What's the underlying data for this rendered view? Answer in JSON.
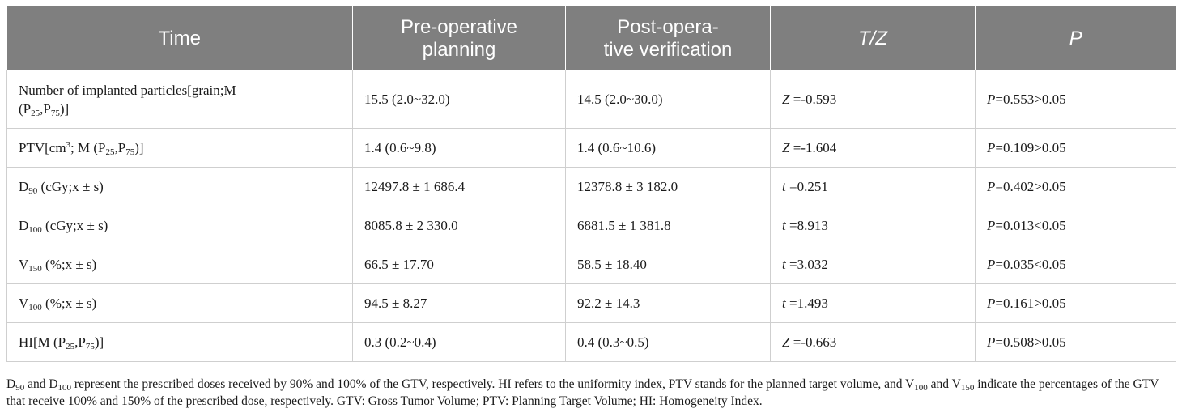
{
  "table": {
    "headers": {
      "time": "Time",
      "pre_line1": "Pre-operative",
      "pre_line2": "planning",
      "post_line1": "Post-opera-",
      "post_line2": "tive verification",
      "tz": "T/Z",
      "p": "P"
    },
    "rows": [
      {
        "label_main": "Number of implanted particles[grain;M",
        "label_sub1": "25",
        "label_sub2": "75",
        "pre": "15.5 (2.0~32.0)",
        "post": "14.5 (2.0~30.0)",
        "stat_sym": "Z",
        "stat_val": " =-0.593",
        "p_sym": "P",
        "p_val": "=0.553>0.05"
      },
      {
        "label_pre": "PTV[cm",
        "label_sup": "3",
        "label_post": "; M (P",
        "label_sub1": "25",
        "label_sub2": "75",
        "pre": "1.4 (0.6~9.8)",
        "post": "1.4 (0.6~10.6)",
        "stat_sym": "Z",
        "stat_val": " =-1.604",
        "p_sym": "P",
        "p_val": "=0.109>0.05"
      },
      {
        "label_letter": "D",
        "label_sub": "90",
        "label_rest": " (cGy;x ± s)",
        "pre": "12497.8 ± 1 686.4",
        "post": "12378.8 ± 3 182.0",
        "stat_sym": "t",
        "stat_val": " =0.251",
        "p_sym": "P",
        "p_val": "=0.402>0.05"
      },
      {
        "label_letter": "D",
        "label_sub": "100",
        "label_rest": " (cGy;x ± s)",
        "pre": "8085.8 ± 2 330.0",
        "post": "6881.5 ± 1 381.8",
        "stat_sym": "t",
        "stat_val": " =8.913",
        "p_sym": "P",
        "p_val": "=0.013<0.05"
      },
      {
        "label_letter": "V",
        "label_sub": "150",
        "label_rest": " (%;x ± s)",
        "pre": "66.5 ± 17.70",
        "post": "58.5 ± 18.40",
        "stat_sym": "t",
        "stat_val": " =3.032",
        "p_sym": "P",
        "p_val": "=0.035<0.05"
      },
      {
        "label_letter": "V",
        "label_sub": "100",
        "label_rest": " (%;x ± s)",
        "pre": "94.5 ± 8.27",
        "post": "92.2 ± 14.3",
        "stat_sym": "t",
        "stat_val": " =1.493",
        "p_sym": "P",
        "p_val": "=0.161>0.05"
      },
      {
        "label_pre": "HI[M (P",
        "label_sub1": "25",
        "label_sub2": "75",
        "pre": "0.3 (0.2~0.4)",
        "post": "0.4 (0.3~0.5)",
        "stat_sym": "Z",
        "stat_val": " =-0.663",
        "p_sym": "P",
        "p_val": "=0.508>0.05"
      }
    ]
  },
  "footnote": {
    "d": "D",
    "d90_sub": "90",
    "and1": " and D",
    "d100_sub": "100",
    "text1": " represent the prescribed doses received by 90% and 100% of the GTV, respectively. HI refers to the uniformity index, PTV stands for the planned target volume, and V",
    "v100_sub": "100",
    "and2": " and V",
    "v150_sub": "150",
    "text2": " indicate the percentages of the GTV that receive 100% and 150% of the prescribed dose, respectively. GTV: Gross Tumor Volume; PTV: Planning Target Volume; HI: Homogeneity Index."
  }
}
